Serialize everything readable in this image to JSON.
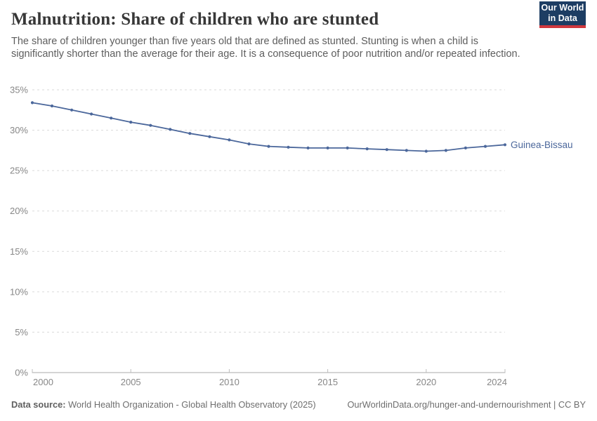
{
  "header": {
    "title": "Malnutrition: Share of children who are stunted",
    "subtitle": "The share of children younger than five years old that are defined as stunted. Stunting is when a child is significantly shorter than the average for their age. It is a consequence of poor nutrition and/or repeated infection.",
    "logo": {
      "line1": "Our World",
      "line2": "in Data"
    }
  },
  "footer": {
    "source_label": "Data source:",
    "source_text": " World Health Organization - Global Health Observatory (2025)",
    "link_text": "OurWorldinData.org/hunger-and-undernourishment | CC BY"
  },
  "colors": {
    "series_blue": "#4b679b",
    "grid": "#dadada",
    "axis": "#a8a8a8",
    "tick_text": "#878787",
    "logo_bg": "#1d3d63",
    "logo_stripe": "#d0383e"
  },
  "chart_data": {
    "type": "line",
    "title": "Malnutrition: Share of children who are stunted",
    "xlabel": "",
    "ylabel": "",
    "xlim": [
      2000,
      2024
    ],
    "ylim": [
      0,
      35
    ],
    "grid": "horizontal-dashed",
    "legend_position": "end-of-line-label",
    "x_ticks": [
      2000,
      2005,
      2010,
      2015,
      2020,
      2024
    ],
    "y_ticks": [
      0,
      5,
      10,
      15,
      20,
      25,
      30,
      35
    ],
    "y_tick_suffix": "%",
    "x": [
      2000,
      2001,
      2002,
      2003,
      2004,
      2005,
      2006,
      2007,
      2008,
      2009,
      2010,
      2011,
      2012,
      2013,
      2014,
      2015,
      2016,
      2017,
      2018,
      2019,
      2020,
      2021,
      2022,
      2023,
      2024
    ],
    "series": [
      {
        "name": "Guinea-Bissau",
        "color": "#4b679b",
        "values": [
          33.4,
          33.0,
          32.5,
          32.0,
          31.5,
          31.0,
          30.6,
          30.1,
          29.6,
          29.2,
          28.8,
          28.3,
          28.0,
          27.9,
          27.8,
          27.8,
          27.8,
          27.7,
          27.6,
          27.5,
          27.4,
          27.5,
          27.8,
          28.0,
          28.2
        ]
      }
    ]
  }
}
